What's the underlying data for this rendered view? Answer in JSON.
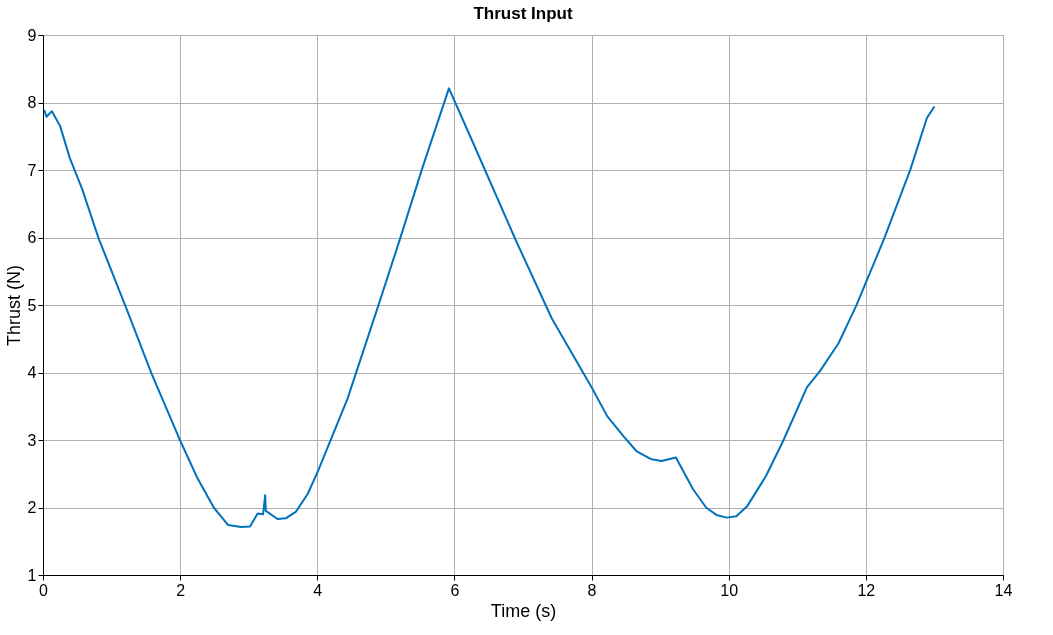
{
  "chart_data": {
    "type": "line",
    "title": "Thrust Input",
    "xlabel": "Time (s)",
    "ylabel": "Thrust (N)",
    "x": [
      0.02,
      0.05,
      0.13,
      0.25,
      0.39,
      0.57,
      0.81,
      1.22,
      1.58,
      2.01,
      2.25,
      2.49,
      2.7,
      2.89,
      3.02,
      3.13,
      3.21,
      3.24,
      3.25,
      3.42,
      3.54,
      3.69,
      3.86,
      4.01,
      4.44,
      4.89,
      5.21,
      5.52,
      5.92,
      6.26,
      6.89,
      7.42,
      8.0,
      8.23,
      8.47,
      8.66,
      8.86,
      9.02,
      9.23,
      9.48,
      9.67,
      9.82,
      9.97,
      10.11,
      10.27,
      10.54,
      10.8,
      11.14,
      11.33,
      11.6,
      11.86,
      12.27,
      12.65,
      12.89,
      13.0
    ],
    "series": [
      {
        "color": "#0072bd",
        "values": [
          7.89,
          7.79,
          7.87,
          7.65,
          7.18,
          6.72,
          5.99,
          4.94,
          3.99,
          2.97,
          2.44,
          2.0,
          1.74,
          1.71,
          1.72,
          1.91,
          1.9,
          2.18,
          1.95,
          1.83,
          1.84,
          1.94,
          2.2,
          2.54,
          3.61,
          4.99,
          5.99,
          6.99,
          8.21,
          7.43,
          5.97,
          4.8,
          3.78,
          3.35,
          3.05,
          2.83,
          2.72,
          2.69,
          2.74,
          2.27,
          2.0,
          1.89,
          1.85,
          1.87,
          2.02,
          2.46,
          3.0,
          3.78,
          4.02,
          4.43,
          4.99,
          5.99,
          7.01,
          7.77,
          7.94
        ]
      }
    ],
    "xlim": [
      0,
      14
    ],
    "xticks": [
      0,
      2,
      4,
      6,
      8,
      10,
      12,
      14
    ],
    "ylim": [
      1,
      9
    ],
    "yticks": [
      1,
      2,
      3,
      4,
      5,
      6,
      7,
      8,
      9
    ],
    "grid": true,
    "legend": false,
    "marker": "none",
    "line_style": "solid"
  }
}
